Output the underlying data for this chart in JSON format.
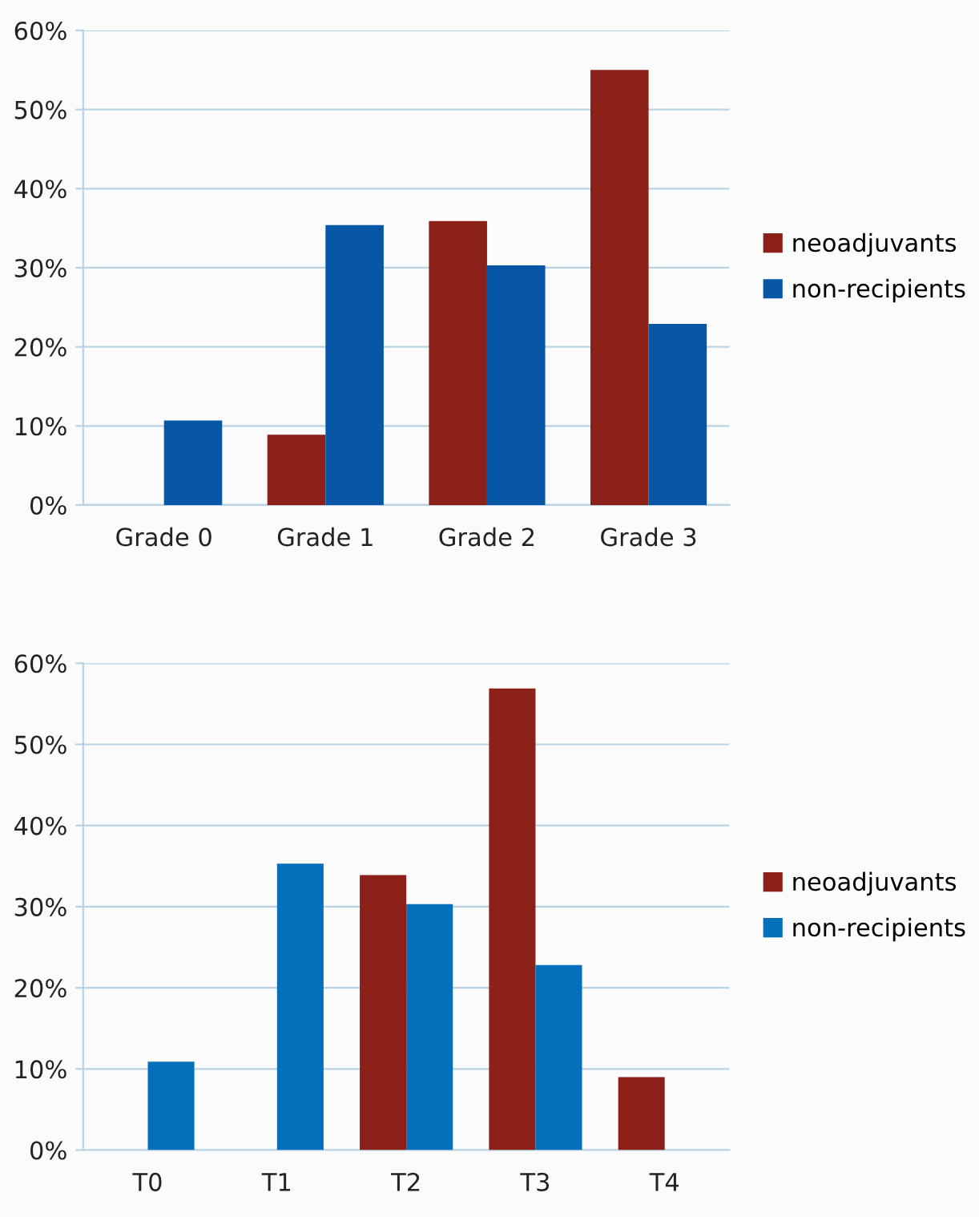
{
  "chart_data": [
    {
      "type": "bar",
      "categories": [
        "Grade 0",
        "Grade 1",
        "Grade 2",
        "Grade 3"
      ],
      "series": [
        {
          "name": "neoadjuvants",
          "color": "#8b2119",
          "values": [
            0,
            8.9,
            35.9,
            55
          ]
        },
        {
          "name": "non-recipients",
          "color": "#0757a6",
          "values": [
            10.7,
            35.4,
            30.3,
            22.9
          ]
        }
      ],
      "ylim": [
        0,
        60
      ],
      "yticks": [
        {
          "value": 0,
          "label": "0%"
        },
        {
          "value": 10,
          "label": "10%"
        },
        {
          "value": 20,
          "label": "20%"
        },
        {
          "value": 30,
          "label": "30%"
        },
        {
          "value": 40,
          "label": "40%"
        },
        {
          "value": 50,
          "label": "50%"
        },
        {
          "value": 60,
          "label": "60%"
        }
      ],
      "grid": "y",
      "legend": "right"
    },
    {
      "type": "bar",
      "categories": [
        "T0",
        "T1",
        "T2",
        "T3",
        "T4"
      ],
      "series": [
        {
          "name": "neoadjuvants",
          "color": "#8b2119",
          "values": [
            0,
            0,
            33.9,
            56.9,
            9.0
          ]
        },
        {
          "name": "non-recipients",
          "color": "#0470bb",
          "values": [
            10.9,
            35.3,
            30.3,
            22.8,
            0
          ]
        }
      ],
      "ylim": [
        0,
        60
      ],
      "yticks": [
        {
          "value": 0,
          "label": "0%"
        },
        {
          "value": 10,
          "label": "10%"
        },
        {
          "value": 20,
          "label": "20%"
        },
        {
          "value": 30,
          "label": "30%"
        },
        {
          "value": 40,
          "label": "40%"
        },
        {
          "value": 50,
          "label": "50%"
        },
        {
          "value": 60,
          "label": "60%"
        }
      ],
      "grid": "y",
      "legend": "right"
    }
  ]
}
